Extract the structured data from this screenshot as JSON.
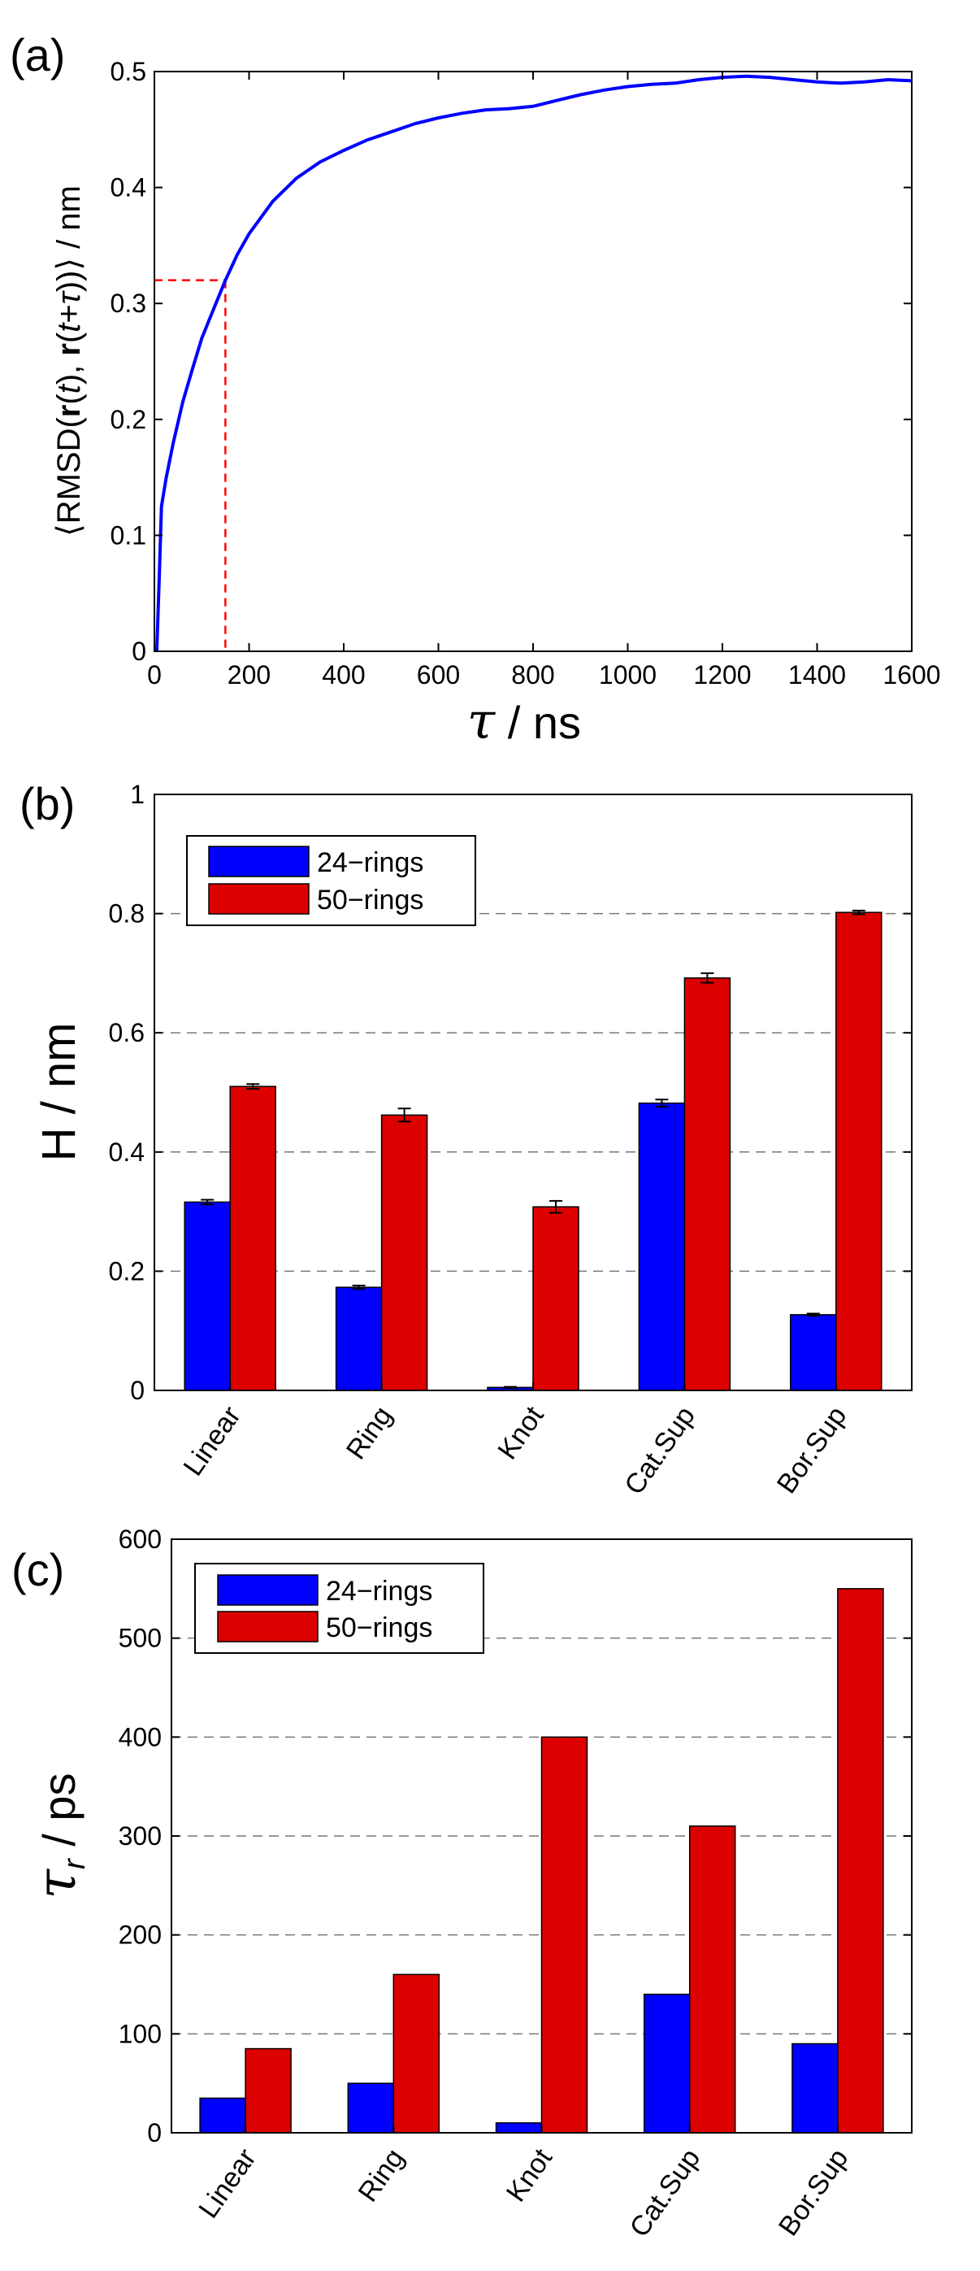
{
  "chart_data": [
    {
      "type": "line",
      "panel_label": "(a)",
      "ylabel": "⟨RMSD(r(t), r(t+τ))⟩ / nm",
      "ylabel_parts": [
        "⟨RMSD(",
        "r",
        "(",
        "t",
        "), ",
        "r",
        "(",
        "t",
        "+",
        "τ",
        "))⟩ / nm"
      ],
      "xlabel": "τ / ns",
      "xlabel_parts": [
        "τ",
        " / ns"
      ],
      "xlim": [
        0,
        1600
      ],
      "ylim": [
        0,
        0.5
      ],
      "xticks": [
        "0",
        "200",
        "400",
        "600",
        "800",
        "1000",
        "1200",
        "1400",
        "1600"
      ],
      "yticks": [
        "0",
        "0.1",
        "0.2",
        "0.3",
        "0.4",
        "0.5"
      ],
      "series": [
        {
          "name": "RMSD",
          "color": "#0000ff",
          "x": [
            5,
            10,
            15,
            25,
            40,
            60,
            80,
            100,
            125,
            150,
            175,
            200,
            250,
            300,
            350,
            400,
            450,
            500,
            550,
            600,
            650,
            700,
            750,
            800,
            850,
            900,
            950,
            1000,
            1050,
            1100,
            1150,
            1200,
            1250,
            1300,
            1350,
            1400,
            1450,
            1500,
            1550,
            1600
          ],
          "y": [
            0.0,
            0.06,
            0.125,
            0.15,
            0.18,
            0.215,
            0.243,
            0.27,
            0.295,
            0.32,
            0.342,
            0.36,
            0.388,
            0.408,
            0.422,
            0.432,
            0.441,
            0.448,
            0.455,
            0.46,
            0.464,
            0.467,
            0.468,
            0.47,
            0.475,
            0.48,
            0.484,
            0.487,
            0.489,
            0.49,
            0.493,
            0.495,
            0.496,
            0.495,
            0.493,
            0.491,
            0.49,
            0.491,
            0.493,
            0.492
          ]
        }
      ],
      "reference_lines": {
        "x": 150,
        "y": 0.32,
        "color": "#ff0000",
        "style": "dashed"
      }
    },
    {
      "type": "bar",
      "panel_label": "(b)",
      "ylabel": "H / nm",
      "ylim": [
        0,
        1
      ],
      "yticks": [
        "0",
        "0.2",
        "0.4",
        "0.6",
        "0.8",
        "1"
      ],
      "grid": "horizontal dashed",
      "legend_position": "top-left",
      "categories": [
        "Linear",
        "Ring",
        "Knot",
        "Cat.Sup",
        "Bor.Sup"
      ],
      "series": [
        {
          "name": "24−rings",
          "color": "#0000ff",
          "values": [
            0.316,
            0.173,
            0.005,
            0.482,
            0.127
          ],
          "errors": [
            0.004,
            0.003,
            0.001,
            0.006,
            0.002
          ]
        },
        {
          "name": "50−rings",
          "color": "#dd0000",
          "values": [
            0.51,
            0.462,
            0.308,
            0.692,
            0.802
          ],
          "errors": [
            0.004,
            0.011,
            0.01,
            0.008,
            0.003
          ]
        }
      ]
    },
    {
      "type": "bar",
      "panel_label": "(c)",
      "ylabel": "τr / ps",
      "ylabel_parts": [
        "τ",
        "r",
        " / ps"
      ],
      "ylim": [
        0,
        600
      ],
      "yticks": [
        "0",
        "100",
        "200",
        "300",
        "400",
        "500",
        "600"
      ],
      "grid": "horizontal dashed",
      "legend_position": "top-left",
      "categories": [
        "Linear",
        "Ring",
        "Knot",
        "Cat.Sup",
        "Bor.Sup"
      ],
      "series": [
        {
          "name": "24−rings",
          "color": "#0000ff",
          "values": [
            35,
            50,
            10,
            140,
            90
          ]
        },
        {
          "name": "50−rings",
          "color": "#dd0000",
          "values": [
            85,
            160,
            400,
            310,
            550
          ]
        }
      ]
    }
  ]
}
